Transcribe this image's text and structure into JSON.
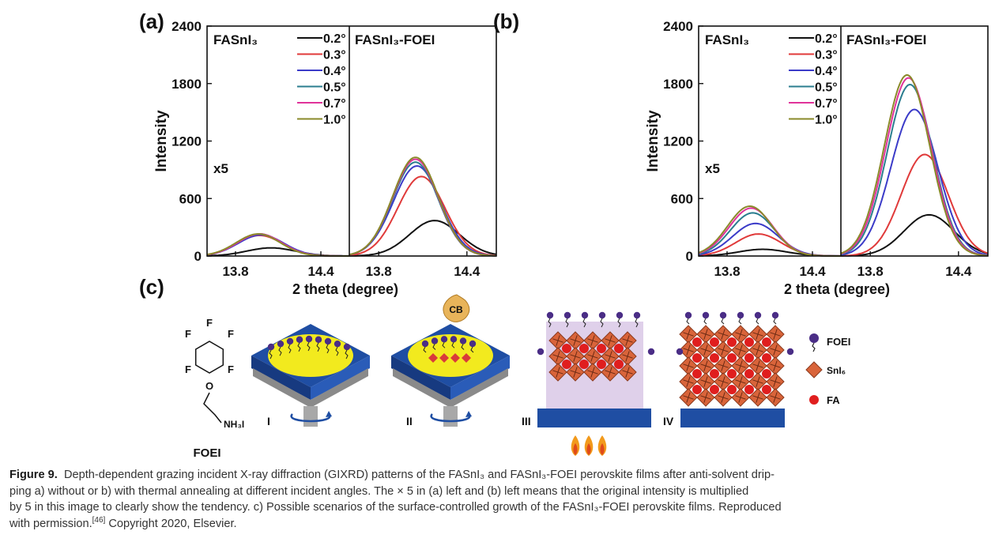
{
  "panel_labels": {
    "a": "(a)",
    "b": "(b)",
    "c": "(c)"
  },
  "chart_data": [
    {
      "panel": "(a)",
      "type": "line",
      "ylabel": "Intensity",
      "xlabel": "2 theta (degree)",
      "ylim": [
        0,
        2400
      ],
      "yticks": [
        0,
        600,
        1200,
        1800,
        2400
      ],
      "xticks": [
        13.8,
        14.4
      ],
      "left_title": "FASnI₃",
      "right_title": "FASnI₃-FOEI",
      "multiplier_label": "x5",
      "legend_placement": "top-left of right half",
      "legend": [
        {
          "label": "0.2°",
          "color": "#111111"
        },
        {
          "label": "0.3°",
          "color": "#e03a3a"
        },
        {
          "label": "0.4°",
          "color": "#3b3bc8"
        },
        {
          "label": "0.5°",
          "color": "#2b7d8f"
        },
        {
          "label": "0.7°",
          "color": "#e0339a"
        },
        {
          "label": "1.0°",
          "color": "#8a8a2a"
        }
      ],
      "left_series_peaks": {
        "x": [
          14.05,
          13.97,
          13.98,
          13.97,
          13.97,
          13.96
        ],
        "y": [
          85,
          215,
          220,
          230,
          230,
          230
        ]
      },
      "right_series_peaks": {
        "x": [
          14.18,
          14.09,
          14.06,
          14.05,
          14.05,
          14.05
        ],
        "y": [
          370,
          830,
          940,
          980,
          1010,
          1030
        ]
      }
    },
    {
      "panel": "(b)",
      "type": "line",
      "ylabel": "Intensity",
      "xlabel": "2 theta (degree)",
      "ylim": [
        0,
        2400
      ],
      "yticks": [
        0,
        600,
        1200,
        1800,
        2400
      ],
      "xticks": [
        13.8,
        14.4
      ],
      "left_title": "FASnI₃",
      "right_title": "FASnI₃-FOEI",
      "multiplier_label": "x5",
      "legend_placement": "top-left of right half",
      "legend": [
        {
          "label": "0.2°",
          "color": "#111111"
        },
        {
          "label": "0.3°",
          "color": "#e03a3a"
        },
        {
          "label": "0.4°",
          "color": "#3b3bc8"
        },
        {
          "label": "0.5°",
          "color": "#2b7d8f"
        },
        {
          "label": "0.7°",
          "color": "#e0339a"
        },
        {
          "label": "1.0°",
          "color": "#8a8a2a"
        }
      ],
      "left_series_peaks": {
        "x": [
          14.05,
          14.02,
          14.0,
          13.98,
          13.97,
          13.96
        ],
        "y": [
          70,
          230,
          340,
          450,
          500,
          520
        ]
      },
      "right_series_peaks": {
        "x": [
          14.2,
          14.17,
          14.1,
          14.07,
          14.06,
          14.05
        ],
        "y": [
          430,
          1060,
          1530,
          1790,
          1860,
          1890
        ]
      }
    }
  ],
  "diagram_c": {
    "molecule_atoms": [
      "F",
      "F",
      "F",
      "F",
      "F",
      "O",
      "NH₃I"
    ],
    "molecule_name": "FOEI",
    "stages": [
      "I",
      "II",
      "III",
      "IV"
    ],
    "cb_label": "CB",
    "legend": [
      "FOEI",
      "SnI₆",
      "FA"
    ],
    "colors": {
      "substrate": "#1f4ea3",
      "film": "#f2ea1e",
      "octahedron": "#d9643a",
      "fa": "#e01e1e",
      "foei": "#4a2d86",
      "flame": "#f29a1c",
      "overlay": "#d9c8e6"
    }
  },
  "caption": {
    "label": "Figure 9.",
    "line1": "Depth-dependent grazing incident X-ray diffraction (GIXRD) patterns of the FASnI₃ and FASnI₃-FOEI perovskite films after anti-solvent drip-",
    "line2": "ping a) without or b) with thermal annealing at different incident angles. The × 5 in (a) left and (b) left means that the original intensity is multiplied",
    "line3": "by 5 in this image to clearly show the tendency. c) Possible scenarios of the surface-controlled growth of the FASnI₃-FOEI perovskite films. Reproduced",
    "line4a": "with permission.",
    "ref": "[46]",
    "line4b": " Copyright 2020, Elsevier."
  }
}
